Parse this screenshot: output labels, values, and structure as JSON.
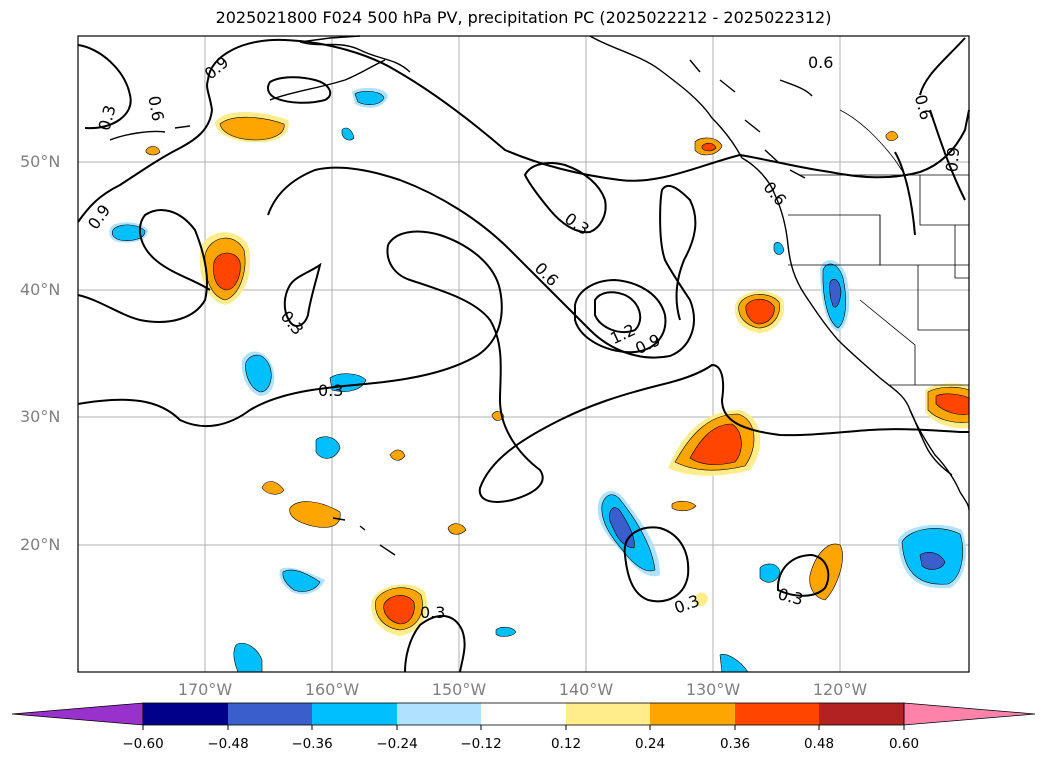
{
  "title": "2025021800 F024 500 hPa PV, precipitation PC (2025022212 - 2025022312)",
  "map": {
    "lat_labels": [
      "50°N",
      "40°N",
      "30°N",
      "20°N"
    ],
    "lon_labels": [
      "170°W",
      "160°W",
      "150°W",
      "140°W",
      "130°W",
      "120°W"
    ],
    "contour_labels": [
      "0.9",
      "0.3",
      "0.6",
      "0.6",
      "0.3",
      "0.6",
      "0.9",
      "0.3",
      "0.3",
      "0.6",
      "1.2",
      "0.9",
      "0.3",
      "0.3",
      "0.3",
      "0.6",
      "0.9",
      "0.6"
    ],
    "grid": true,
    "coastlines": true,
    "states": true
  },
  "colorbar": {
    "levels": [
      "−0.60",
      "−0.48",
      "−0.36",
      "−0.24",
      "−0.12",
      "0.12",
      "0.24",
      "0.36",
      "0.48",
      "0.60"
    ],
    "colors": [
      "#9932cc",
      "#00008b",
      "#3a5fcd",
      "#00bfff",
      "#b0e2ff",
      "#ffffff",
      "#ffec8b",
      "#ffa500",
      "#ff4500",
      "#b22222",
      "#ff82ab"
    ],
    "extend": "both"
  },
  "colors": {
    "contour": "#000000",
    "grid": "#b0b0b0",
    "tick_label": "#808080"
  }
}
